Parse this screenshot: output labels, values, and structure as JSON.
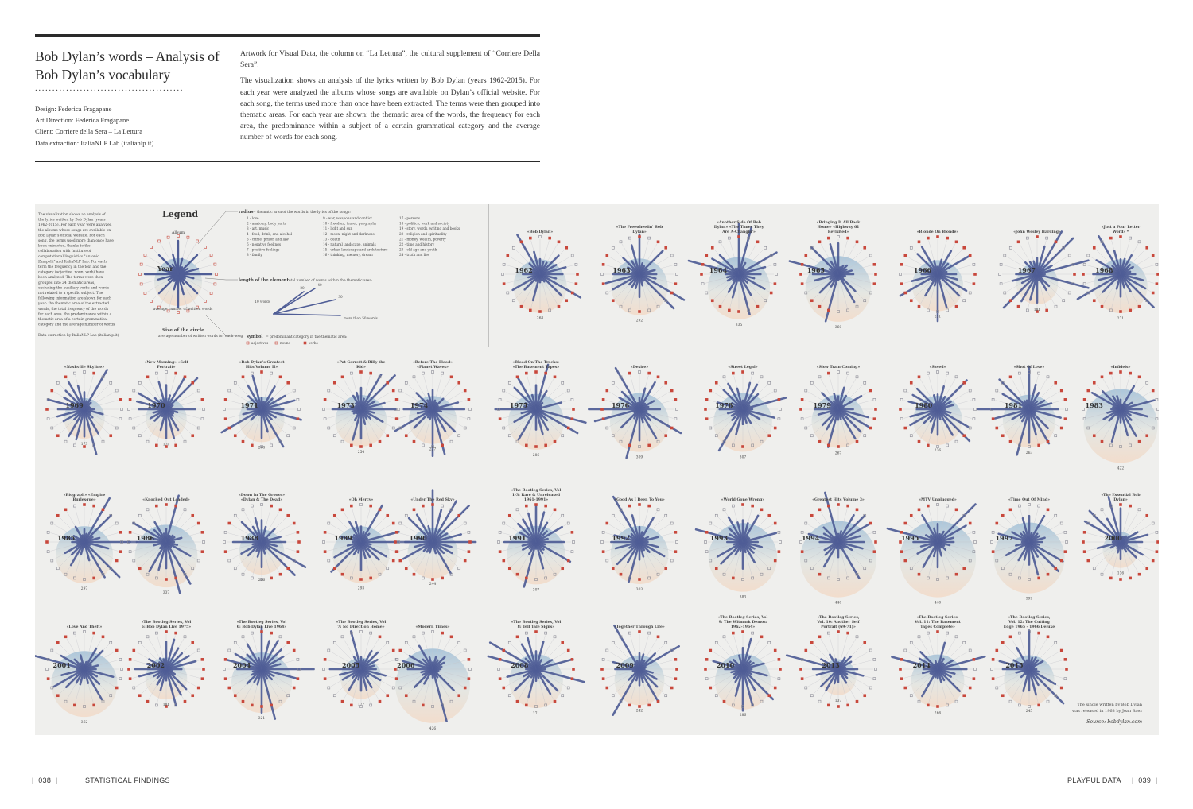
{
  "header": {
    "title": "Bob Dylan’s words – Analysis of Bob Dylan’s vocabulary",
    "dots": "...........................................",
    "credits": [
      "Design: Federica Fragapane",
      "Art Direction: Federica Fragapane",
      "Client: Corriere della Sera – La Lettura",
      "Data extraction: ItaliaNLP Lab (italianlp.it)"
    ],
    "description": [
      "Artwork for Visual Data, the column on “La Lettura”, the cultural supplement of “Corriere Della Sera”.",
      "The visualization shows an analysis of the lyrics written by Bob Dylan (years 1962-2015). For each year were analyzed the albums whose songs are available on Dylan’s official website. For each song, the terms used more than once have been extracted. The terms were then grouped into thematic areas. For each year are shown: the thematic area of the words, the frequency for each area, the predominance within a subject of a certain grammatical category and the average number of words for each song."
    ]
  },
  "legend": {
    "title": "Legend",
    "album_label": "Album",
    "year_label": "Year",
    "avg_label": "average number of written words",
    "size_title": "Size of the circle",
    "size_desc": "average number of written words for each song",
    "radius_title": "radius",
    "radius_desc": "= thematic area of the words in the lyrics of the songs:",
    "themes": [
      "1 - love",
      "2 - anatomy, body parts",
      "3 - art, music",
      "4 - food, drink, and alcohol",
      "5 - crime, prison and law",
      "6 - negative feelings",
      "7 - positive feelings",
      "8 - family",
      "9 - war, weapons and conflict",
      "10 - freedom, travel, geography",
      "11 - light and sun",
      "12 - moon, night and darkness",
      "13 - death",
      "14 - natural landscape, animals",
      "15 - urban landscape and architecture",
      "16 - thinking, memory, dream",
      "17 - persons",
      "18 - politics, work and society",
      "19 - story, words, writing and books",
      "20 - religion and spirituality",
      "21 - money, wealth, poverty",
      "22 - time and history",
      "23 - old age and youth",
      "24 - truth and lies"
    ],
    "length_title": "length of the element",
    "length_desc": "= total number of words within the thematic area:",
    "length_marks": [
      "10 words",
      "20",
      "40",
      "30",
      "more than 50 words"
    ],
    "symbol_title": "symbol",
    "symbol_desc": "= predominant category in the thematic area:",
    "symbols": [
      "adjectives",
      "nouns",
      "verbs"
    ],
    "intro": "The visualization shows an analysis of the lyrics written by Bob Dylan (years 1962-2015). For each year were analyzed the albums whose songs are available on Bob Dylan's official website. For each song, the terms used more than once have been extracted, thanks to the collaboration with Institute of computational linguistics \"Antonio Zampolli\" and ItaliaNLP Lab. For each term the frequency in the text and the category (adjective, noun, verb) have been analyzed. The terms were then grouped into 24 thematic areas, excluding the auxiliary verbs and words not related to a specific subject. The following information are shown for each year: the thematic area of the extracted words, the total frequency of the words for each area, the predominance within a thematic area of a certain grammatical category and the average number of words for each song.",
    "data_extraction": "Data extraction by ItaliaNLP Lab (italianlp.it)"
  },
  "footnote": {
    "single": "The single written by Bob Dylan was released in 1968 by Joan Baez",
    "source": "Source: bobdylan.com"
  },
  "years": [
    {
      "year": "1962",
      "album": "«Bob Dylan»",
      "words": "268"
    },
    {
      "year": "1963",
      "album": "«The Freewheelin' Bob Dylan»",
      "words": "292"
    },
    {
      "year": "1964",
      "album": "«Another Side Of Bob Dylan» «The Times They Are A-Changin'»",
      "words": "335"
    },
    {
      "year": "1965",
      "album": "«Bringing It All Back Home» «Highway 61 Revisited»",
      "words": "360"
    },
    {
      "year": "1966",
      "album": "«Blonde On Blonde»",
      "words": "251"
    },
    {
      "year": "1967",
      "album": "«John Wesley Harding»",
      "words": "181"
    },
    {
      "year": "1968",
      "album": "«Just a Four Letter Word» *",
      "words": "271"
    },
    {
      "year": "1969",
      "album": "«Nashville Skyline»",
      "words": "173"
    },
    {
      "year": "1970",
      "album": "«New Morning» «Self Portrait»",
      "words": "174"
    },
    {
      "year": "1971",
      "album": "«Bob Dylan's Greatest Hits Volume II»",
      "words": "208"
    },
    {
      "year": "1973",
      "album": "«Pat Garrett & Billy the Kid»",
      "words": "254"
    },
    {
      "year": "1974",
      "album": "«Before The Flood» «Planet Waves»",
      "words": "227"
    },
    {
      "year": "1975",
      "album": "«Blood On The Tracks» «The Basement Tapes»",
      "words": "286"
    },
    {
      "year": "1976",
      "album": "«Desire»",
      "words": "309"
    },
    {
      "year": "1978",
      "album": "«Street Legal»",
      "words": "307"
    },
    {
      "year": "1979",
      "album": "«Slow Train Coming»",
      "words": "267"
    },
    {
      "year": "1980",
      "album": "«Saved»",
      "words": "236"
    },
    {
      "year": "1981",
      "album": "«Shot Of Love»",
      "words": "263"
    },
    {
      "year": "1983",
      "album": "«Infidels»",
      "words": "422"
    },
    {
      "year": "1985",
      "album": "«Biograph» «Empire Burlesque»",
      "words": "297"
    },
    {
      "year": "1986",
      "album": "«Knocked Out Loaded»",
      "words": "337"
    },
    {
      "year": "1988",
      "album": "«Down In The Groove» «Dylan & The Dead»",
      "words": "206"
    },
    {
      "year": "1989",
      "album": "«Oh Mercy»",
      "words": "293"
    },
    {
      "year": "1990",
      "album": "«Under The Red Sky»",
      "words": "244"
    },
    {
      "year": "1991",
      "album": "«The Bootleg Series, Vol 1-3: Rare & Unreleased 1961-1991»",
      "words": "307"
    },
    {
      "year": "1992",
      "album": "«Good As I Been To You»",
      "words": "303"
    },
    {
      "year": "1993",
      "album": "«World Gone Wrong»",
      "words": "383"
    },
    {
      "year": "1994",
      "album": "«Greatest Hits Volume 3»",
      "words": "440"
    },
    {
      "year": "1995",
      "album": "«MTV Unplugged»",
      "words": "440"
    },
    {
      "year": "1997",
      "album": "«Time Out Of Mind»",
      "words": "399"
    },
    {
      "year": "2000",
      "album": "«The Essential Bob Dylan»",
      "words": "136"
    },
    {
      "year": "2001",
      "album": "«Love And Theft»",
      "words": "362"
    },
    {
      "year": "2002",
      "album": "«The Bootleg Series, Vol 5: Bob Dylan Live 1975»",
      "words": "181"
    },
    {
      "year": "2004",
      "album": "«The Bootleg Series, Vol 6: Bob Dylan Live 1964»",
      "words": "321"
    },
    {
      "year": "2005",
      "album": "«The Bootleg Series, Vol 7: No Direction Home»",
      "words": "177"
    },
    {
      "year": "2006",
      "album": "«Modern Times»",
      "words": "426"
    },
    {
      "year": "2008",
      "album": "«The Bootleg Series, Vol 8: Tell Tale Signs»",
      "words": "271"
    },
    {
      "year": "2009",
      "album": "«Together Through Life»",
      "words": "242"
    },
    {
      "year": "2010",
      "album": "«The Bootleg Series, Vol 9: The Witmark Demos: 1962-1964»",
      "words": "286"
    },
    {
      "year": "2013",
      "album": "«The Bootleg Series, Vol. 10: Another Self Portrait (69-71)»",
      "words": "137"
    },
    {
      "year": "2014",
      "album": "«The Bootleg Series, Vol. 11: The Basement Tapes Complete»",
      "words": "266"
    },
    {
      "year": "2015",
      "album": "«The Bootleg Series, Vol. 12: The Cutting Edge 1965 - 1966 Deluxe Edition»",
      "words": "245"
    }
  ],
  "footer": {
    "left_page": "038",
    "left_section": "STATISTICAL FINDINGS",
    "right_section": "PLAYFUL DATA",
    "right_page": "039"
  },
  "colors": {
    "rule": "#2a2a2a",
    "panel": "#efefed",
    "spike": "#4f5d96",
    "circle_top": "#a9c4d9",
    "circle_bottom": "#f2dccb",
    "dot_red": "#c8483c"
  }
}
